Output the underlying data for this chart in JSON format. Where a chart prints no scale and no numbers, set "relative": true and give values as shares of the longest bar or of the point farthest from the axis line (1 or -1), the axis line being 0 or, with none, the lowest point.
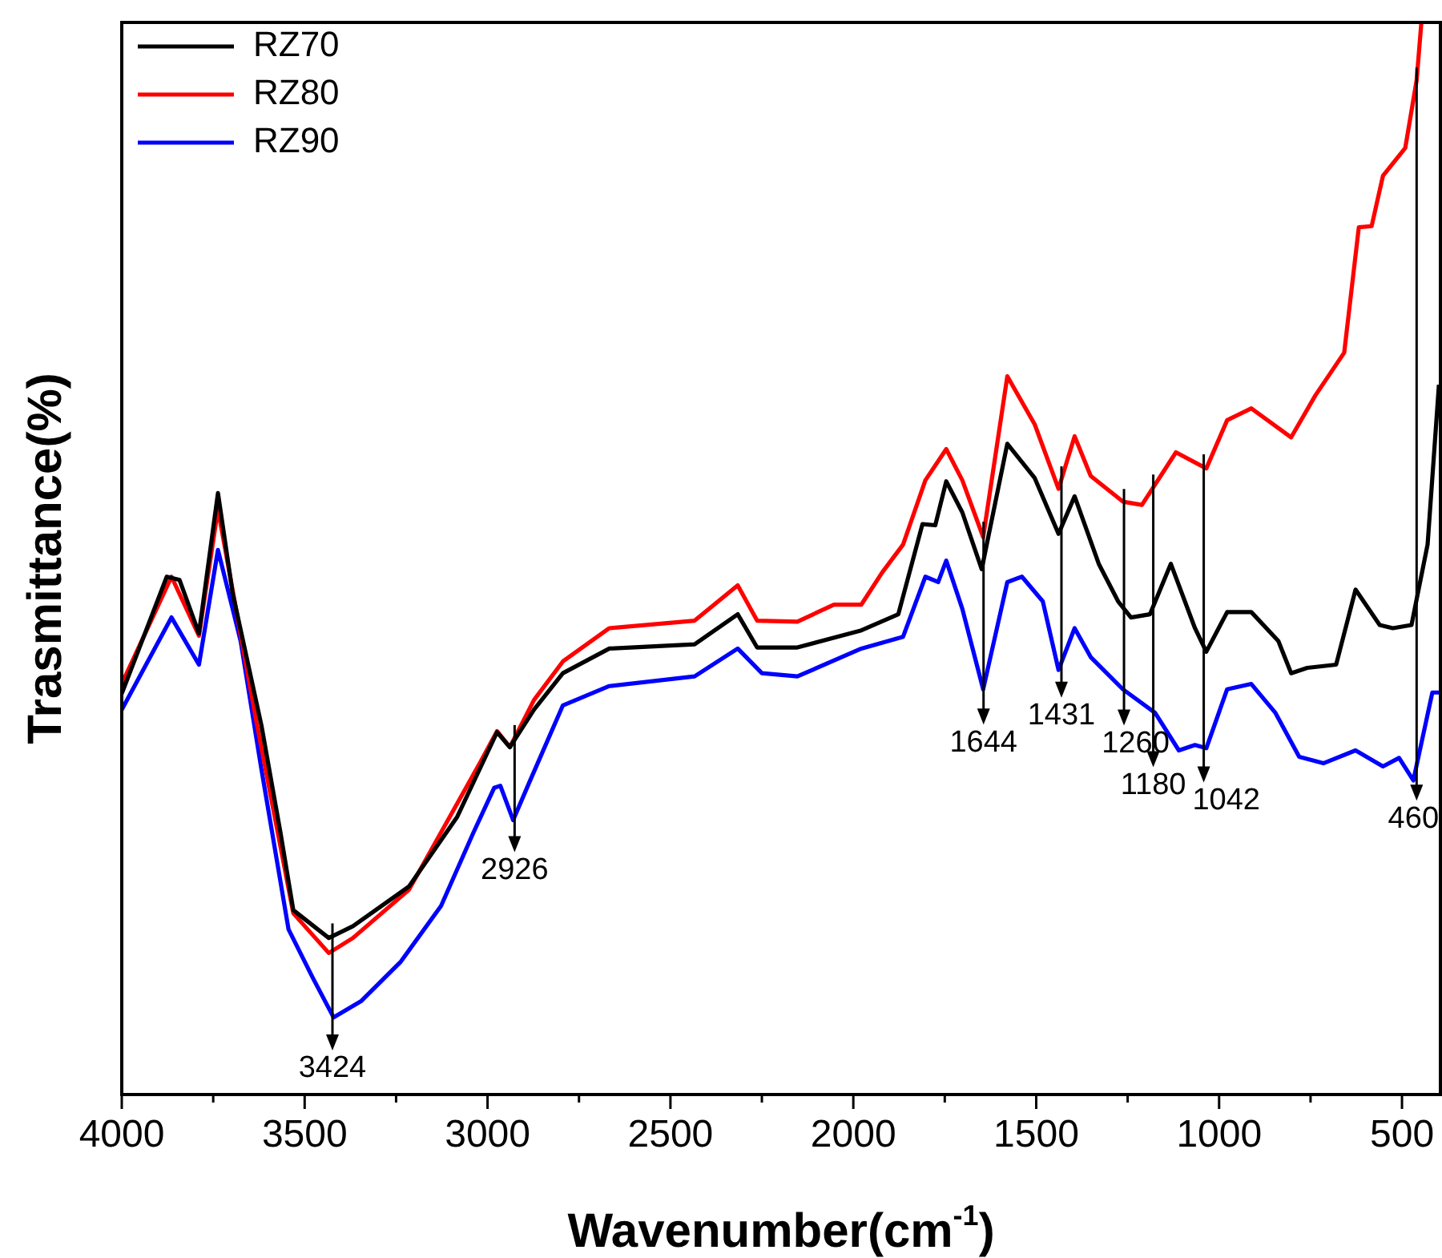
{
  "chart_data": {
    "type": "line",
    "relative": true,
    "xlabel": "Wavenumber(cm$^{-1}$)",
    "ylabel": "Trasmittance(%)",
    "xlim": [
      4000,
      395
    ],
    "xticks": [
      4000,
      {
        "value": 3750,
        "label": null
      },
      3500,
      {
        "value": 3250,
        "label": null
      },
      3000,
      {
        "value": 2750,
        "label": null
      },
      2500,
      {
        "value": 2250,
        "label": null
      },
      2000,
      {
        "value": 1750,
        "label": null
      },
      1500,
      {
        "value": 1250,
        "label": null
      },
      1000,
      {
        "value": 750,
        "label": null
      },
      500
    ],
    "grid": false,
    "legend": "top left",
    "series": [
      {
        "name": "RZ70",
        "color": "#000000",
        "x": [
          4000,
          3877,
          3842,
          3789,
          3737,
          3697,
          3618,
          3566,
          3531,
          3434,
          3368,
          3215,
          3083,
          2974,
          2939,
          2873,
          2794,
          2667,
          2434,
          2316,
          2263,
          2153,
          1978,
          1877,
          1811,
          1776,
          1746,
          1702,
          1649,
          1579,
          1504,
          1439,
          1395,
          1329,
          1276,
          1241,
          1189,
          1132,
          1066,
          1035,
          978,
          912,
          838,
          803,
          759,
          680,
          627,
          561,
          525,
          474,
          430,
          399
        ],
        "values": [
          0.374,
          0.483,
          0.48,
          0.43,
          0.561,
          0.468,
          0.344,
          0.244,
          0.172,
          0.146,
          0.157,
          0.194,
          0.259,
          0.338,
          0.324,
          0.359,
          0.393,
          0.416,
          0.42,
          0.448,
          0.417,
          0.417,
          0.433,
          0.448,
          0.532,
          0.531,
          0.572,
          0.543,
          0.49,
          0.607,
          0.575,
          0.523,
          0.558,
          0.495,
          0.46,
          0.445,
          0.448,
          0.495,
          0.435,
          0.413,
          0.45,
          0.45,
          0.423,
          0.393,
          0.398,
          0.401,
          0.471,
          0.438,
          0.435,
          0.438,
          0.513,
          0.662
        ]
      },
      {
        "name": "RZ80",
        "color": "#ff0000",
        "x": [
          4000,
          3864,
          3789,
          3737,
          3632,
          3531,
          3434,
          3368,
          3215,
          3018,
          2974,
          2939,
          2873,
          2794,
          2667,
          2434,
          2316,
          2263,
          2153,
          2053,
          1978,
          1921,
          1864,
          1803,
          1746,
          1702,
          1645,
          1579,
          1504,
          1439,
          1395,
          1351,
          1263,
          1211,
          1118,
          1035,
          978,
          912,
          803,
          737,
          658,
          618,
          583,
          552,
          491,
          460,
          447
        ],
        "values": [
          0.383,
          0.483,
          0.428,
          0.546,
          0.348,
          0.169,
          0.132,
          0.146,
          0.191,
          0.311,
          0.339,
          0.324,
          0.368,
          0.404,
          0.435,
          0.442,
          0.475,
          0.442,
          0.441,
          0.457,
          0.457,
          0.487,
          0.513,
          0.573,
          0.602,
          0.573,
          0.52,
          0.67,
          0.625,
          0.565,
          0.614,
          0.577,
          0.553,
          0.55,
          0.599,
          0.584,
          0.629,
          0.64,
          0.613,
          0.652,
          0.692,
          0.809,
          0.81,
          0.857,
          0.883,
          0.946,
          1
        ]
      },
      {
        "name": "RZ90",
        "color": "#0000ff",
        "x": [
          4000,
          3864,
          3789,
          3737,
          3675,
          3618,
          3544,
          3478,
          3421,
          3346,
          3237,
          3127,
          3039,
          2982,
          2965,
          2930,
          2886,
          2794,
          2667,
          2434,
          2316,
          2250,
          2153,
          1978,
          1864,
          1803,
          1768,
          1746,
          1702,
          1645,
          1579,
          1539,
          1482,
          1439,
          1395,
          1351,
          1263,
          1175,
          1110,
          1066,
          1035,
          978,
          912,
          846,
          781,
          715,
          627,
          552,
          508,
          469,
          417,
          399
        ],
        "values": [
          0.359,
          0.445,
          0.401,
          0.508,
          0.423,
          0.303,
          0.154,
          0.109,
          0.072,
          0.087,
          0.124,
          0.176,
          0.244,
          0.286,
          0.288,
          0.256,
          0.291,
          0.363,
          0.381,
          0.39,
          0.416,
          0.393,
          0.39,
          0.416,
          0.427,
          0.483,
          0.478,
          0.498,
          0.453,
          0.378,
          0.478,
          0.483,
          0.46,
          0.396,
          0.435,
          0.408,
          0.378,
          0.356,
          0.321,
          0.326,
          0.323,
          0.378,
          0.383,
          0.356,
          0.315,
          0.309,
          0.321,
          0.306,
          0.314,
          0.293,
          0.375,
          0.375
        ]
      }
    ],
    "annotations": [
      {
        "text": "3424",
        "x": 3424,
        "y": 0.074
      },
      {
        "text": "2926",
        "x": 2926,
        "y": 0.259
      },
      {
        "text": "1644",
        "x": 1644,
        "y": 0.378
      },
      {
        "text": "1431",
        "x": 1431,
        "y": 0.403
      },
      {
        "text": "1260",
        "x": 1260,
        "y": 0.377
      },
      {
        "text": "1180",
        "x": 1180,
        "y": 0.357
      },
      {
        "text": "1042",
        "x": 1042,
        "y": 0.324
      },
      {
        "text": "460",
        "x": 460,
        "y": 0.307
      }
    ]
  }
}
